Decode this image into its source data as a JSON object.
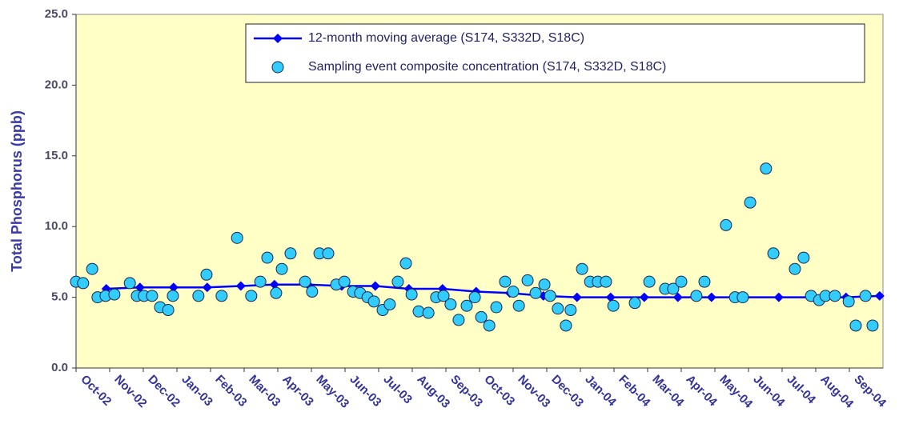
{
  "chart_data": {
    "type": "scatter",
    "y_label": "Total Phosphorus (ppb)",
    "ylim": [
      0,
      25
    ],
    "yticks": [
      {
        "value": 0,
        "label": "0.0"
      },
      {
        "value": 5,
        "label": "5.0"
      },
      {
        "value": 10,
        "label": "10.0"
      },
      {
        "value": 15,
        "label": "15.0"
      },
      {
        "value": 20,
        "label": "20.0"
      },
      {
        "value": 25,
        "label": "25.0"
      }
    ],
    "xlim": [
      0,
      24
    ],
    "xticks": [
      {
        "value": 0,
        "label": "Oct-02"
      },
      {
        "value": 1,
        "label": "Nov-02"
      },
      {
        "value": 2,
        "label": "Dec-02"
      },
      {
        "value": 3,
        "label": "Jan-03"
      },
      {
        "value": 4,
        "label": "Feb-03"
      },
      {
        "value": 5,
        "label": "Mar-03"
      },
      {
        "value": 6,
        "label": "Apr-03"
      },
      {
        "value": 7,
        "label": "May-03"
      },
      {
        "value": 8,
        "label": "Jun-03"
      },
      {
        "value": 9,
        "label": "Jul-03"
      },
      {
        "value": 10,
        "label": "Aug-03"
      },
      {
        "value": 11,
        "label": "Sep-03"
      },
      {
        "value": 12,
        "label": "Oct-03"
      },
      {
        "value": 13,
        "label": "Nov-03"
      },
      {
        "value": 14,
        "label": "Dec-03"
      },
      {
        "value": 15,
        "label": "Jan-04"
      },
      {
        "value": 16,
        "label": "Feb-04"
      },
      {
        "value": 17,
        "label": "Mar-04"
      },
      {
        "value": 18,
        "label": "Apr-04"
      },
      {
        "value": 19,
        "label": "May-04"
      },
      {
        "value": 20,
        "label": "Jun-04"
      },
      {
        "value": 21,
        "label": "Jul-04"
      },
      {
        "value": 22,
        "label": "Aug-04"
      },
      {
        "value": 23,
        "label": "Sep-04"
      }
    ],
    "grid": false,
    "legend": "top-right",
    "series": [
      {
        "name": "12-month moving average (S174, S332D, S18C)",
        "type": "line",
        "color": "#0000ff",
        "x": [
          0.9,
          1.9,
          2.9,
          3.9,
          4.9,
          5.9,
          6.9,
          7.9,
          8.9,
          9.9,
          10.9,
          11.9,
          12.9,
          13.9,
          14.9,
          15.9,
          16.9,
          17.9,
          18.9,
          19.9,
          20.9,
          21.9,
          22.9,
          23.9
        ],
        "values": [
          5.6,
          5.7,
          5.7,
          5.7,
          5.8,
          5.9,
          5.9,
          5.8,
          5.8,
          5.6,
          5.6,
          5.4,
          5.3,
          5.1,
          5.0,
          5.0,
          5.0,
          5.0,
          5.0,
          5.0,
          5.0,
          5.0,
          5.0,
          5.1
        ]
      },
      {
        "name": "Sampling event composite concentration (S174, S332D, S18C)",
        "type": "scatter",
        "color": "#33ccff",
        "x": [
          0,
          0.21,
          0.48,
          0.64,
          0.88,
          1.14,
          1.6,
          1.81,
          2.02,
          2.26,
          2.5,
          2.74,
          2.88,
          3.64,
          3.88,
          4.33,
          4.79,
          5.21,
          5.48,
          5.69,
          5.95,
          6.12,
          6.38,
          6.81,
          7.02,
          7.24,
          7.5,
          7.74,
          7.98,
          8.24,
          8.45,
          8.67,
          8.86,
          9.12,
          9.33,
          9.57,
          9.81,
          9.98,
          10.19,
          10.48,
          10.71,
          10.93,
          11.14,
          11.38,
          11.62,
          11.86,
          12.05,
          12.29,
          12.5,
          12.76,
          13.0,
          13.17,
          13.43,
          13.67,
          13.93,
          14.1,
          14.33,
          14.57,
          14.71,
          15.05,
          15.29,
          15.52,
          15.76,
          15.98,
          16.62,
          17.05,
          17.52,
          17.76,
          18.0,
          18.45,
          18.69,
          19.33,
          19.6,
          19.83,
          20.05,
          20.52,
          20.74,
          21.38,
          21.64,
          21.86,
          22.1,
          22.29,
          22.57,
          22.98,
          23.19,
          23.48,
          23.69
        ],
        "values": [
          6.1,
          6.0,
          7.0,
          5.0,
          5.1,
          5.2,
          6.0,
          5.1,
          5.1,
          5.1,
          4.3,
          4.1,
          5.1,
          5.1,
          6.6,
          5.1,
          9.2,
          5.1,
          6.1,
          7.8,
          5.3,
          7.0,
          8.1,
          6.1,
          5.4,
          8.1,
          8.1,
          5.9,
          6.1,
          5.4,
          5.3,
          5.0,
          4.7,
          4.1,
          4.5,
          6.1,
          7.4,
          5.2,
          4.0,
          3.9,
          5.0,
          5.1,
          4.5,
          3.4,
          4.4,
          5.0,
          3.6,
          3.0,
          4.3,
          6.1,
          5.4,
          4.4,
          6.2,
          5.3,
          5.9,
          5.1,
          4.2,
          3.0,
          4.1,
          7.0,
          6.1,
          6.1,
          6.1,
          4.4,
          4.6,
          6.1,
          5.6,
          5.6,
          6.1,
          5.1,
          6.1,
          10.1,
          5.0,
          5.0,
          11.7,
          14.1,
          8.1,
          7.0,
          7.8,
          5.1,
          4.8,
          5.1,
          5.1,
          4.7,
          3.0,
          5.1,
          3.0
        ]
      }
    ]
  }
}
